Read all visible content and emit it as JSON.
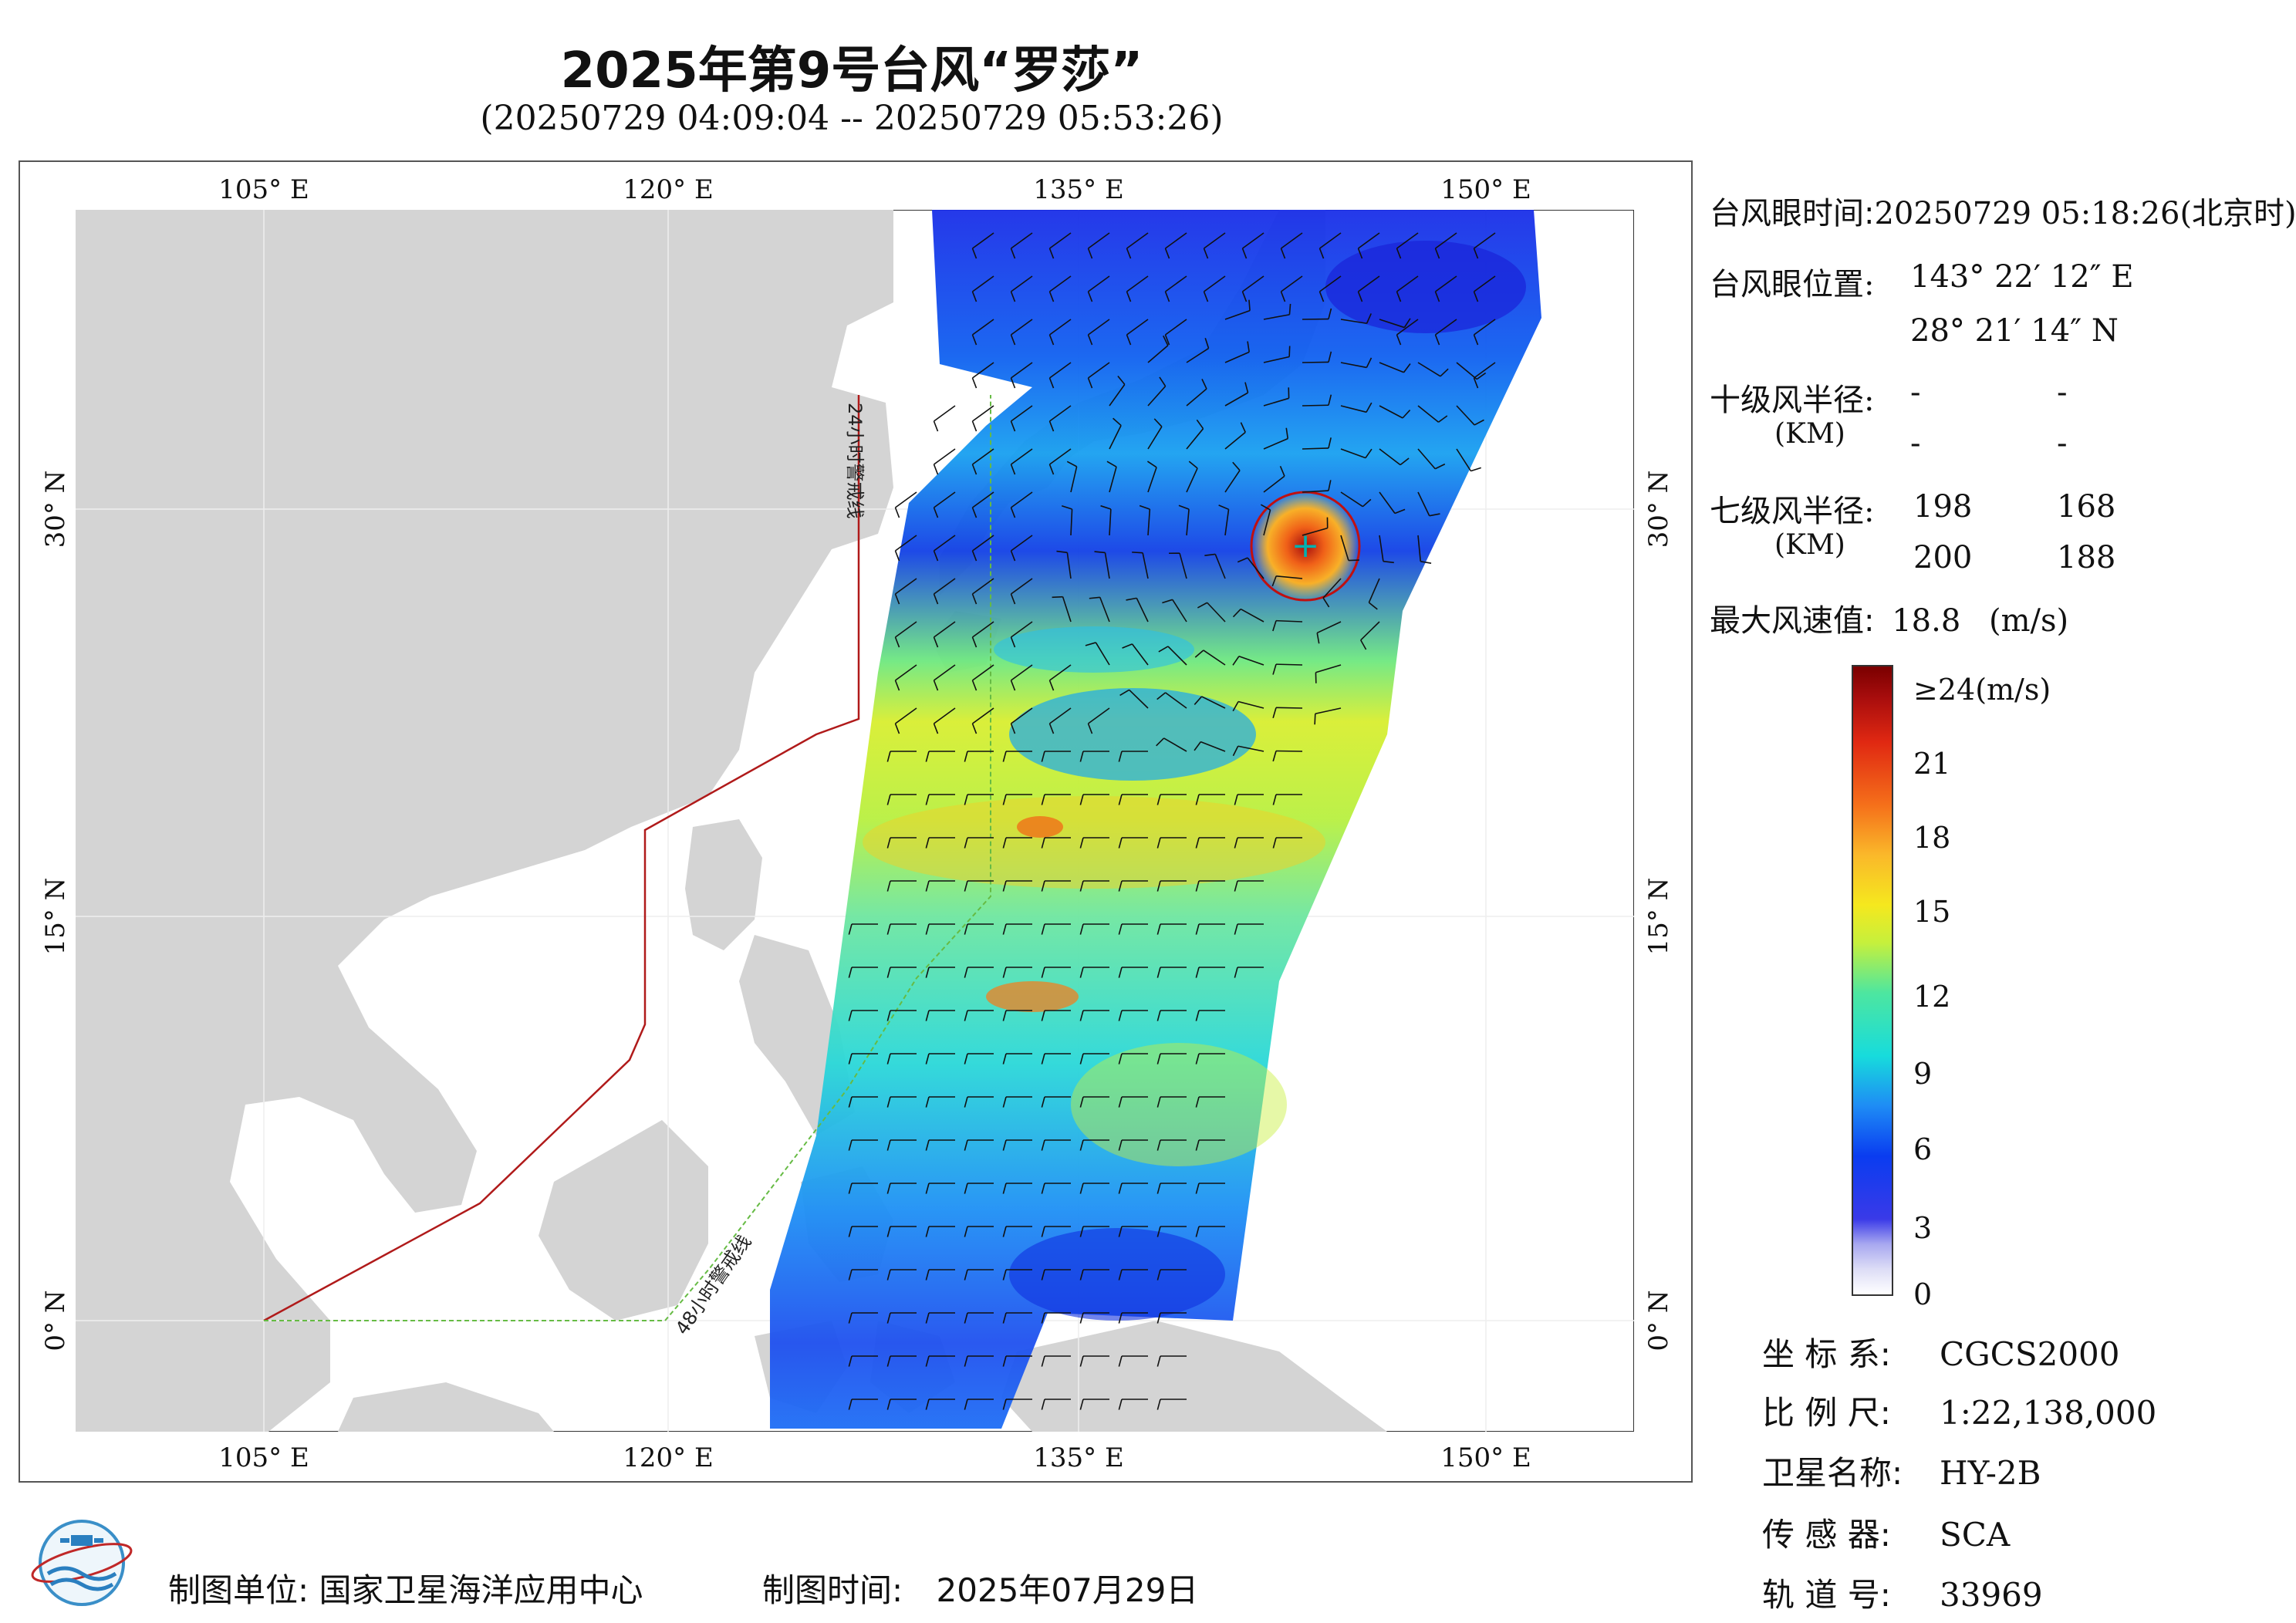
{
  "header": {
    "title": "2025年第9号台风“罗莎”",
    "time_range": "(20250729 04:09:04 -- 20250729 05:53:26)"
  },
  "map": {
    "lon_ticks": [
      "105° E",
      "120° E",
      "135° E",
      "150° E"
    ],
    "lat_ticks": [
      "30° N",
      "15° N",
      "0° N"
    ],
    "warning_line_24h": "24小时警戒线",
    "warning_line_48h": "48小时警戒线",
    "typhoon_eye_marker": "+"
  },
  "typhoon_info": {
    "eye_time_label": "台风眼时间:",
    "eye_time_value": "20250729 05:18:26(北京时)",
    "eye_pos_label": "台风眼位置:",
    "eye_lon": "143° 22′ 12″ E",
    "eye_lat": "28° 21′ 14″ N",
    "r10_label": "十级风半径:",
    "r10_unit": "(KM)",
    "r10_values": [
      "-",
      "-",
      "-",
      "-"
    ],
    "r7_label": "七级风半径:",
    "r7_unit": "(KM)",
    "r7_values": [
      "198",
      "168",
      "200",
      "188"
    ],
    "max_wind_label": "最大风速值:",
    "max_wind_value": "18.8",
    "max_wind_unit": "(m/s)"
  },
  "colorbar": {
    "labels": [
      "≥24(m/s)",
      "21",
      "18",
      "15",
      "12",
      "9",
      "6",
      "3",
      "0"
    ],
    "min": 0,
    "max": 24
  },
  "metadata": {
    "crs_label": "坐 标 系:",
    "crs_value": "CGCS2000",
    "scale_label": "比 例 尺:",
    "scale_value": "1:22,138,000",
    "satellite_label": "卫星名称:",
    "satellite_value": "HY-2B",
    "sensor_label": "传 感 器:",
    "sensor_value": "SCA",
    "orbit_label": "轨 道 号:",
    "orbit_value": "33969"
  },
  "footer": {
    "unit_label": "制图单位:",
    "unit_value": "国家卫星海洋应用中心",
    "time_label": "制图时间:",
    "time_value": "2025年07月29日"
  },
  "colors": {
    "land": "#d4d4d4",
    "ocean": "#ffffff",
    "warning_line": "#b01a1a",
    "line_48h": "#66bb44",
    "typhoon_circle": "#c01010"
  }
}
